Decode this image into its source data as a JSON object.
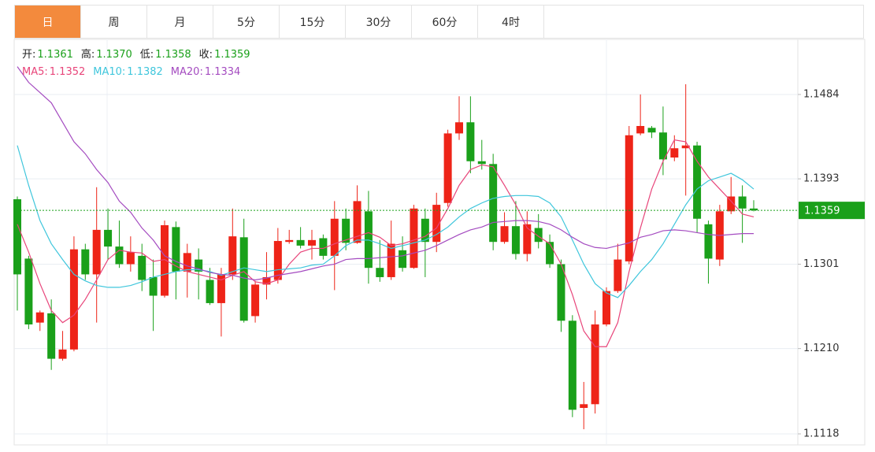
{
  "tabs": [
    "日",
    "周",
    "月",
    "5分",
    "15分",
    "30分",
    "60分",
    "4时"
  ],
  "active_tab": 0,
  "chart_data": {
    "type": "candlestick",
    "info": [
      {
        "name": "开:",
        "text": "1.1361"
      },
      {
        "name": "高:",
        "text": "1.1370"
      },
      {
        "name": "低:",
        "text": "1.1358"
      },
      {
        "name": "收:",
        "text": "1.1359"
      }
    ],
    "legend": [
      {
        "name": "MA5:",
        "text": "1.1352"
      },
      {
        "name": "MA10:",
        "text": "1.1382"
      },
      {
        "name": "MA20:",
        "text": "1.1334"
      }
    ],
    "up_color": "#ee2418",
    "down_color": "#1aa01a",
    "candles": {
      "open": [
        1.1371,
        1.1307,
        1.1238,
        1.1248,
        1.1199,
        1.1209,
        1.1317,
        1.129,
        1.1338,
        1.132,
        1.1301,
        1.131,
        1.1287,
        1.1267,
        1.1341,
        1.1293,
        1.1306,
        1.1284,
        1.1259,
        1.129,
        1.133,
        1.1245,
        1.1279,
        1.1284,
        1.1325,
        1.1327,
        1.1321,
        1.1329,
        1.131,
        1.135,
        1.1324,
        1.1358,
        1.1297,
        1.1287,
        1.1316,
        1.1297,
        1.135,
        1.1325,
        1.1367,
        1.1442,
        1.1454,
        1.1412,
        1.1409,
        1.1325,
        1.1342,
        1.1312,
        1.134,
        1.1325,
        1.1301,
        1.124,
        1.1146,
        1.115,
        1.1236,
        1.1272,
        1.1304,
        1.1442,
        1.1448,
        1.1443,
        1.1416,
        1.1426,
        1.1429,
        1.1344,
        1.1306,
        1.1358,
        1.1374,
        1.1361
      ],
      "high": [
        1.1374,
        1.131,
        1.1251,
        1.1263,
        1.1229,
        1.1331,
        1.1323,
        1.1384,
        1.1361,
        1.1348,
        1.1331,
        1.1323,
        1.1306,
        1.1348,
        1.1347,
        1.1323,
        1.1318,
        1.1297,
        1.1297,
        1.1361,
        1.135,
        1.1283,
        1.1314,
        1.134,
        1.1338,
        1.1341,
        1.1338,
        1.1333,
        1.1369,
        1.1361,
        1.1386,
        1.138,
        1.1327,
        1.1348,
        1.1331,
        1.1365,
        1.1361,
        1.1378,
        1.1446,
        1.1482,
        1.1482,
        1.1435,
        1.142,
        1.1357,
        1.1369,
        1.1358,
        1.1355,
        1.1333,
        1.1306,
        1.1246,
        1.1174,
        1.1251,
        1.1276,
        1.1323,
        1.145,
        1.1484,
        1.145,
        1.1471,
        1.144,
        1.1495,
        1.1433,
        1.1348,
        1.1365,
        1.1395,
        1.1386,
        1.137
      ],
      "low": [
        1.1251,
        1.1231,
        1.1229,
        1.1187,
        1.1197,
        1.1207,
        1.1284,
        1.1238,
        1.1306,
        1.1297,
        1.1293,
        1.1272,
        1.1229,
        1.1265,
        1.1263,
        1.1265,
        1.1263,
        1.1257,
        1.1223,
        1.1284,
        1.1238,
        1.1238,
        1.1263,
        1.128,
        1.1323,
        1.1318,
        1.1306,
        1.1306,
        1.1273,
        1.1316,
        1.1323,
        1.128,
        1.1282,
        1.1284,
        1.1293,
        1.1296,
        1.1287,
        1.1314,
        1.1363,
        1.1435,
        1.1399,
        1.1403,
        1.1316,
        1.1323,
        1.1306,
        1.1304,
        1.1318,
        1.1297,
        1.1228,
        1.1136,
        1.1123,
        1.114,
        1.1234,
        1.127,
        1.1301,
        1.144,
        1.1437,
        1.1397,
        1.1412,
        1.1375,
        1.1335,
        1.128,
        1.1299,
        1.1355,
        1.1324,
        1.1358
      ],
      "close": [
        1.129,
        1.1236,
        1.1249,
        1.1199,
        1.1209,
        1.1317,
        1.129,
        1.1338,
        1.132,
        1.1301,
        1.1314,
        1.1284,
        1.1267,
        1.1343,
        1.1293,
        1.1313,
        1.1293,
        1.1259,
        1.129,
        1.1331,
        1.124,
        1.1279,
        1.1287,
        1.1326,
        1.1327,
        1.1321,
        1.1327,
        1.131,
        1.135,
        1.1324,
        1.1369,
        1.1297,
        1.1287,
        1.1323,
        1.1297,
        1.1361,
        1.1325,
        1.1365,
        1.1442,
        1.1454,
        1.1412,
        1.1409,
        1.1325,
        1.1342,
        1.1312,
        1.1344,
        1.1325,
        1.1301,
        1.124,
        1.1144,
        1.115,
        1.1236,
        1.1272,
        1.1306,
        1.144,
        1.145,
        1.1443,
        1.1414,
        1.1426,
        1.1429,
        1.135,
        1.1307,
        1.1358,
        1.1374,
        1.1361,
        1.1359
      ]
    },
    "series": [
      {
        "color": "#e8457a",
        "values": [
          1.1344,
          1.1314,
          1.128,
          1.1251,
          1.1238,
          1.1246,
          1.1263,
          1.1284,
          1.1306,
          1.1316,
          1.1314,
          1.1313,
          1.1304,
          1.1306,
          1.1299,
          1.1293,
          1.129,
          1.1287,
          1.1284,
          1.1289,
          1.1293,
          1.1282,
          1.128,
          1.1284,
          1.1301,
          1.1314,
          1.1318,
          1.1318,
          1.1323,
          1.1327,
          1.1331,
          1.1335,
          1.133,
          1.1321,
          1.1323,
          1.1327,
          1.1331,
          1.134,
          1.1361,
          1.1386,
          1.1403,
          1.1408,
          1.1406,
          1.1386,
          1.1365,
          1.134,
          1.1331,
          1.1323,
          1.1301,
          1.1268,
          1.1229,
          1.1212,
          1.1212,
          1.1238,
          1.1293,
          1.134,
          1.1382,
          1.1412,
          1.1435,
          1.1433,
          1.1412,
          1.1395,
          1.1382,
          1.1369,
          1.1355,
          1.1352
        ]
      },
      {
        "color": "#3fc6dc",
        "values": [
          1.1429,
          1.1386,
          1.1348,
          1.1323,
          1.1306,
          1.129,
          1.1283,
          1.1278,
          1.1276,
          1.1276,
          1.1278,
          1.1282,
          1.1287,
          1.129,
          1.1293,
          1.1295,
          1.1295,
          1.1293,
          1.1289,
          1.1293,
          1.1297,
          1.1295,
          1.1293,
          1.1295,
          1.1296,
          1.1297,
          1.13,
          1.1301,
          1.131,
          1.1321,
          1.1327,
          1.1327,
          1.1323,
          1.1318,
          1.1321,
          1.1324,
          1.1327,
          1.1333,
          1.1341,
          1.1352,
          1.1361,
          1.1367,
          1.1372,
          1.1374,
          1.1375,
          1.1375,
          1.1374,
          1.1367,
          1.1352,
          1.1327,
          1.1301,
          1.128,
          1.127,
          1.1265,
          1.1278,
          1.1293,
          1.1306,
          1.1323,
          1.1344,
          1.1365,
          1.1382,
          1.1391,
          1.1395,
          1.1399,
          1.1392,
          1.1382
        ]
      },
      {
        "color": "#a44bc0",
        "values": [
          1.1514,
          1.1497,
          1.1486,
          1.1475,
          1.1454,
          1.1433,
          1.142,
          1.1403,
          1.1389,
          1.1369,
          1.1357,
          1.134,
          1.1327,
          1.131,
          1.1304,
          1.1299,
          1.1296,
          1.1292,
          1.129,
          1.1289,
          1.1286,
          1.1284,
          1.1286,
          1.1289,
          1.1291,
          1.1293,
          1.1296,
          1.1299,
          1.1301,
          1.1306,
          1.1307,
          1.1307,
          1.1308,
          1.1309,
          1.131,
          1.1313,
          1.1316,
          1.1321,
          1.1327,
          1.1333,
          1.1338,
          1.1341,
          1.1346,
          1.1347,
          1.1348,
          1.1348,
          1.1347,
          1.1344,
          1.1338,
          1.133,
          1.1323,
          1.1319,
          1.1318,
          1.1321,
          1.1324,
          1.133,
          1.1333,
          1.1337,
          1.1338,
          1.1337,
          1.1335,
          1.1333,
          1.1332,
          1.1333,
          1.1334,
          1.1334
        ]
      }
    ],
    "last_price": 1.1359,
    "last_price_color": "#1aa01a",
    "ylim": [
      1.11061,
      1.15434
    ],
    "yticks": [
      1.1484,
      1.1393,
      1.1301,
      {
        "value": 1.121,
        "label": "1.1210"
      },
      1.1118
    ],
    "grid": true
  }
}
